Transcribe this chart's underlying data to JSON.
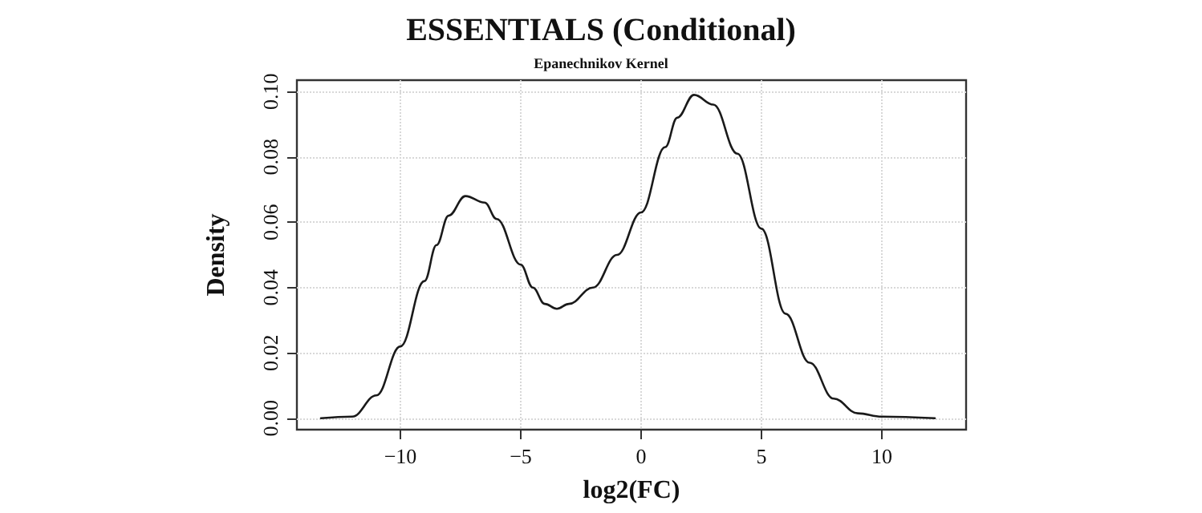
{
  "chart_data": {
    "type": "line",
    "title": "ESSENTIALS (Conditional)",
    "subtitle": "Epanechnikov Kernel",
    "xlabel": "log2(FC)",
    "ylabel": "Density",
    "x": [
      -13.3,
      -12,
      -11,
      -10,
      -9,
      -8.5,
      -8,
      -7.3,
      -6.5,
      -6,
      -5,
      -4.5,
      -4,
      -3.5,
      -3,
      -2,
      -1,
      0,
      1,
      1.5,
      2.2,
      3,
      4,
      5,
      6,
      7,
      8,
      9,
      10,
      12.2
    ],
    "series": [
      {
        "color": "#1a1a1a",
        "values": [
          0,
          0.0005,
          0.007,
          0.022,
          0.042,
          0.053,
          0.062,
          0.068,
          0.066,
          0.061,
          0.047,
          0.04,
          0.035,
          0.0335,
          0.035,
          0.04,
          0.05,
          0.063,
          0.083,
          0.092,
          0.099,
          0.096,
          0.081,
          0.058,
          0.032,
          0.017,
          0.006,
          0.0015,
          0.0005,
          0
        ]
      }
    ],
    "xlim": [
      -14.3,
      13.5
    ],
    "ylim": [
      -0.0035,
      0.1035
    ],
    "xticks": [
      -10,
      -5,
      0,
      5,
      10
    ],
    "yticks": [
      {
        "value": 0,
        "label": "0.00"
      },
      {
        "value": 0.02,
        "label": "0.02"
      },
      {
        "value": 0.04,
        "label": "0.04"
      },
      {
        "value": 0.06,
        "label": "0.06"
      },
      {
        "value": 0.08,
        "label": "0.08"
      },
      {
        "value": 0.1,
        "label": "0.10"
      }
    ],
    "grid": true,
    "marker": "none",
    "line_style": "solid"
  }
}
